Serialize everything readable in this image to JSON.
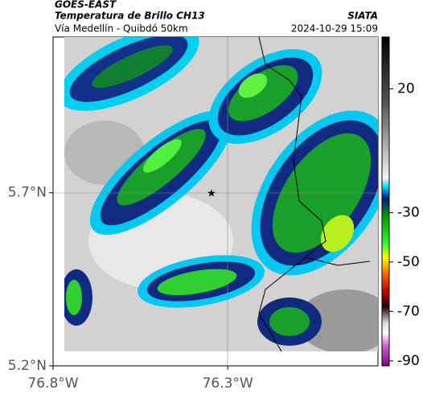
{
  "header": {
    "title": "GOES-EAST",
    "subtitle": "Temperatura de Brillo CH13",
    "source": "SIATA",
    "region": "Vía Medellín - Quibdó 50km",
    "datetime": "2024-10-29 15:09"
  },
  "map": {
    "xlim": [
      -76.8,
      -75.87
    ],
    "ylim": [
      5.2,
      6.15
    ],
    "xticks": [
      {
        "value": -76.8,
        "label": "76.8°W"
      },
      {
        "value": -76.3,
        "label": "76.3°W"
      }
    ],
    "yticks": [
      {
        "value": 5.2,
        "label": "5.2°N"
      },
      {
        "value": 5.7,
        "label": "5.7°N"
      }
    ]
  },
  "colorbar": {
    "lim": [
      -92,
      41
    ],
    "ticks": [
      20,
      -30,
      -50,
      -70,
      -90
    ]
  }
}
